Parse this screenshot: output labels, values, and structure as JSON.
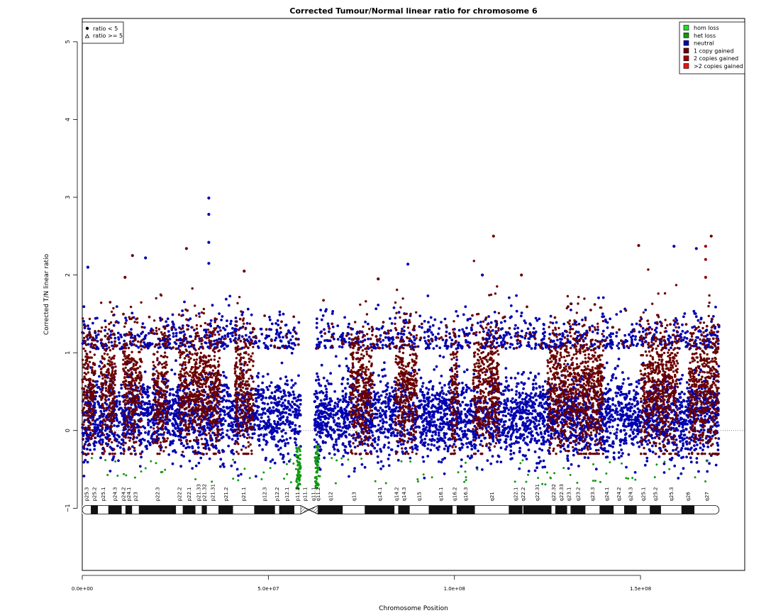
{
  "chart_data": {
    "type": "scatter",
    "title": "Corrected Tumour/Normal linear ratio for chromosome  6",
    "xlabel": "Chromosome Position",
    "ylabel": "Corrected T/N linear ratio",
    "xlim": [
      0,
      178000000
    ],
    "ylim": [
      -1.8,
      5.3
    ],
    "x_ticks": [
      0,
      50000000,
      100000000,
      150000000
    ],
    "x_tick_labels": [
      "0.0e+00",
      "5.0e+07",
      "1.0e+08",
      "1.5e+08"
    ],
    "y_ticks": [
      -1,
      0,
      1,
      2,
      3,
      4,
      5
    ],
    "y_tick_labels": [
      "−1",
      "0",
      "1",
      "2",
      "3",
      "4",
      "5"
    ],
    "reference_line": 0,
    "chromosome_length": 171100000,
    "centromere": [
      58500000,
      62600000
    ],
    "shape_legend": {
      "position": "top-left",
      "entries": [
        {
          "symbol": "circle",
          "label": "ratio < 5"
        },
        {
          "symbol": "triangle",
          "label": "ratio >= 5"
        }
      ]
    },
    "color_legend": {
      "position": "top-right",
      "entries": [
        {
          "label": "hom loss",
          "color": "#22dd22"
        },
        {
          "label": "het loss",
          "color": "#119911"
        },
        {
          "label": "neutral",
          "color": "#0000b0"
        },
        {
          "label": "1 copy gained",
          "color": "#6b0000"
        },
        {
          "label": "2 copies gained",
          "color": "#a00000"
        },
        {
          "label": ">2 copies gained",
          "color": "#ee1111"
        }
      ]
    },
    "bands": [
      {
        "name": "p25.3",
        "start": 0,
        "end": 2300000,
        "stain": "gneg"
      },
      {
        "name": "p25.2",
        "start": 2300000,
        "end": 4200000,
        "stain": "gpos"
      },
      {
        "name": "p25.1",
        "start": 4200000,
        "end": 7000000,
        "stain": "gneg"
      },
      {
        "name": "p24.3",
        "start": 7000000,
        "end": 10600000,
        "stain": "gpos"
      },
      {
        "name": "p24.2",
        "start": 10600000,
        "end": 11600000,
        "stain": "gneg"
      },
      {
        "name": "p24.1",
        "start": 11600000,
        "end": 13400000,
        "stain": "gpos"
      },
      {
        "name": "p23",
        "start": 13400000,
        "end": 15200000,
        "stain": "gneg"
      },
      {
        "name": "p22.3",
        "start": 15200000,
        "end": 25200000,
        "stain": "gpos"
      },
      {
        "name": "p22.2",
        "start": 25200000,
        "end": 27000000,
        "stain": "gneg"
      },
      {
        "name": "p22.1",
        "start": 27000000,
        "end": 30400000,
        "stain": "gpos"
      },
      {
        "name": "p21.33",
        "start": 30400000,
        "end": 32100000,
        "stain": "gneg"
      },
      {
        "name": "p21.32",
        "start": 32100000,
        "end": 33500000,
        "stain": "gpos"
      },
      {
        "name": "p21.31",
        "start": 33500000,
        "end": 36600000,
        "stain": "gneg"
      },
      {
        "name": "p21.2",
        "start": 36600000,
        "end": 40500000,
        "stain": "gpos"
      },
      {
        "name": "p21.1",
        "start": 40500000,
        "end": 46200000,
        "stain": "gneg"
      },
      {
        "name": "p12.3",
        "start": 46200000,
        "end": 51800000,
        "stain": "gpos"
      },
      {
        "name": "p12.2",
        "start": 51800000,
        "end": 52900000,
        "stain": "gneg"
      },
      {
        "name": "p12.1",
        "start": 52900000,
        "end": 57000000,
        "stain": "gpos"
      },
      {
        "name": "p11.2",
        "start": 57000000,
        "end": 58700000,
        "stain": "gneg"
      },
      {
        "name": "p11.1",
        "start": 58700000,
        "end": 61000000,
        "stain": "acen"
      },
      {
        "name": "q11.1",
        "start": 61000000,
        "end": 63300000,
        "stain": "acen"
      },
      {
        "name": "q11.2",
        "start": 63300000,
        "end": 63400000,
        "stain": "gvar"
      },
      {
        "name": "q12",
        "start": 63400000,
        "end": 70000000,
        "stain": "gpos"
      },
      {
        "name": "q13",
        "start": 70000000,
        "end": 75900000,
        "stain": "gneg"
      },
      {
        "name": "q14.1",
        "start": 75900000,
        "end": 83900000,
        "stain": "gpos"
      },
      {
        "name": "q14.2",
        "start": 83900000,
        "end": 84900000,
        "stain": "gneg"
      },
      {
        "name": "q14.3",
        "start": 84900000,
        "end": 88000000,
        "stain": "gpos"
      },
      {
        "name": "q15",
        "start": 88000000,
        "end": 93100000,
        "stain": "gneg"
      },
      {
        "name": "q16.1",
        "start": 93100000,
        "end": 99500000,
        "stain": "gpos"
      },
      {
        "name": "q16.2",
        "start": 99500000,
        "end": 100600000,
        "stain": "gneg"
      },
      {
        "name": "q16.3",
        "start": 100600000,
        "end": 105500000,
        "stain": "gpos"
      },
      {
        "name": "q21",
        "start": 105500000,
        "end": 114600000,
        "stain": "gneg"
      },
      {
        "name": "q22.1",
        "start": 114600000,
        "end": 118300000,
        "stain": "gpos"
      },
      {
        "name": "q22.2",
        "start": 118300000,
        "end": 118500000,
        "stain": "gneg"
      },
      {
        "name": "q22.31",
        "start": 118500000,
        "end": 126100000,
        "stain": "gpos"
      },
      {
        "name": "q22.32",
        "start": 126100000,
        "end": 127100000,
        "stain": "gneg"
      },
      {
        "name": "q22.33",
        "start": 127100000,
        "end": 130300000,
        "stain": "gpos"
      },
      {
        "name": "q23.1",
        "start": 130300000,
        "end": 131200000,
        "stain": "gneg"
      },
      {
        "name": "q23.2",
        "start": 131200000,
        "end": 135200000,
        "stain": "gpos"
      },
      {
        "name": "q23.3",
        "start": 135200000,
        "end": 139000000,
        "stain": "gneg"
      },
      {
        "name": "q24.1",
        "start": 139000000,
        "end": 142800000,
        "stain": "gpos"
      },
      {
        "name": "q24.2",
        "start": 142800000,
        "end": 145600000,
        "stain": "gneg"
      },
      {
        "name": "q24.3",
        "start": 145600000,
        "end": 149000000,
        "stain": "gpos"
      },
      {
        "name": "q25.1",
        "start": 149000000,
        "end": 152500000,
        "stain": "gneg"
      },
      {
        "name": "q25.2",
        "start": 152500000,
        "end": 155500000,
        "stain": "gpos"
      },
      {
        "name": "q25.3",
        "start": 155500000,
        "end": 161000000,
        "stain": "gneg"
      },
      {
        "name": "q26",
        "start": 161000000,
        "end": 164500000,
        "stain": "gpos"
      },
      {
        "name": "q27",
        "start": 164500000,
        "end": 171100000,
        "stain": "gneg"
      }
    ],
    "notable_points": [
      {
        "x": 34000000,
        "y": 2.99,
        "class": "neutral"
      },
      {
        "x": 34000000,
        "y": 2.78,
        "class": "neutral"
      },
      {
        "x": 34000000,
        "y": 2.42,
        "class": "neutral"
      },
      {
        "x": 28000000,
        "y": 2.34,
        "class": "1 copy gained"
      },
      {
        "x": 13500000,
        "y": 2.25,
        "class": "1 copy gained"
      },
      {
        "x": 17000000,
        "y": 2.22,
        "class": "neutral"
      },
      {
        "x": 34000000,
        "y": 2.15,
        "class": "neutral"
      },
      {
        "x": 43500000,
        "y": 2.05,
        "class": "1 copy gained"
      },
      {
        "x": 1500000,
        "y": 2.1,
        "class": "neutral"
      },
      {
        "x": 11500000,
        "y": 1.97,
        "class": "1 copy gained"
      },
      {
        "x": 110500000,
        "y": 2.5,
        "class": "1 copy gained"
      },
      {
        "x": 149500000,
        "y": 2.38,
        "class": "1 copy gained"
      },
      {
        "x": 169000000,
        "y": 2.5,
        "class": "1 copy gained"
      },
      {
        "x": 167500000,
        "y": 2.37,
        "class": "2 copies gained"
      },
      {
        "x": 167500000,
        "y": 2.2,
        "class": "2 copies gained"
      },
      {
        "x": 167500000,
        "y": 1.97,
        "class": "2 copies gained"
      },
      {
        "x": 165000000,
        "y": 2.34,
        "class": "neutral"
      },
      {
        "x": 159000000,
        "y": 2.37,
        "class": "neutral"
      },
      {
        "x": 87500000,
        "y": 2.14,
        "class": "neutral"
      },
      {
        "x": 107500000,
        "y": 2.0,
        "class": "neutral"
      },
      {
        "x": 118000000,
        "y": 2.0,
        "class": "1 copy gained"
      },
      {
        "x": 79500000,
        "y": 1.95,
        "class": "1 copy gained"
      }
    ],
    "series": [
      {
        "name": "hom loss",
        "color": "#22dd22"
      },
      {
        "name": "het loss",
        "color": "#119911"
      },
      {
        "name": "neutral",
        "color": "#0000b0"
      },
      {
        "name": "1 copy gained",
        "color": "#6b0000"
      },
      {
        "name": "2 copies gained",
        "color": "#a00000"
      },
      {
        "name": ">2 copies gained",
        "color": "#ee1111"
      }
    ]
  }
}
